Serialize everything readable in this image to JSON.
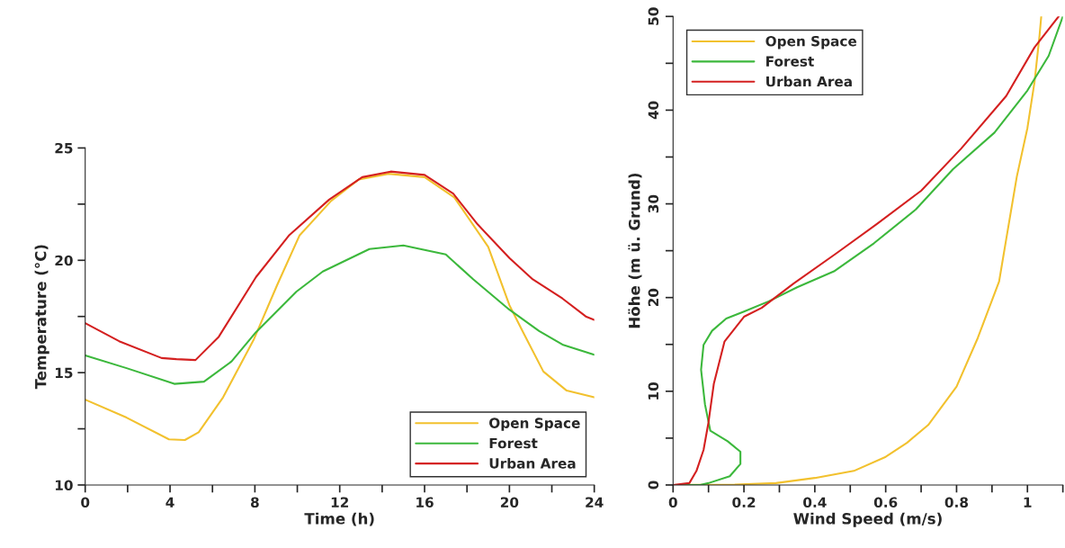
{
  "chart_data": [
    {
      "type": "line",
      "xlabel": "Time (h)",
      "ylabel": "Temperature (°C)",
      "xlim": [
        0,
        24
      ],
      "ylim": [
        10,
        25
      ],
      "xticks": [
        0,
        {
          "value": 2,
          "label": null
        },
        4,
        {
          "value": 6,
          "label": null
        },
        8,
        {
          "value": 10,
          "label": null
        },
        12,
        {
          "value": 14,
          "label": null
        },
        16,
        {
          "value": 18,
          "label": null
        },
        20,
        {
          "value": 22,
          "label": null
        },
        24
      ],
      "yticks": [
        10,
        {
          "value": 12.5,
          "label": null
        },
        15,
        {
          "value": 17.5,
          "label": null
        },
        20,
        {
          "value": 22.5,
          "label": null
        },
        25
      ],
      "legend": "bottom right",
      "grid": false,
      "series": [
        {
          "name": "Open Space",
          "color": "#f2c12e",
          "x": [
            0,
            1.95,
            3.95,
            4.7,
            5.35,
            6.5,
            7.96,
            9.05,
            10.1,
            11.6,
            12.9,
            14.3,
            16.0,
            17.4,
            19.0,
            20.0,
            20.7,
            21.6,
            22.7,
            24
          ],
          "values": [
            13.8,
            13.0,
            12.03,
            12.0,
            12.35,
            13.9,
            16.5,
            18.9,
            21.1,
            22.65,
            23.6,
            23.85,
            23.7,
            22.8,
            20.6,
            18.0,
            16.7,
            15.05,
            14.2,
            13.9
          ]
        },
        {
          "name": "Forest",
          "color": "#3cb83c",
          "x": [
            0,
            1.95,
            4.2,
            5.6,
            6.9,
            8.05,
            9.95,
            11.2,
            13.4,
            15.0,
            17.0,
            18.3,
            20.0,
            21.4,
            22.5,
            24
          ],
          "values": [
            15.77,
            15.2,
            14.5,
            14.6,
            15.5,
            16.8,
            18.6,
            19.5,
            20.5,
            20.66,
            20.26,
            19.15,
            17.8,
            16.85,
            16.25,
            15.8
          ]
        },
        {
          "name": "Urban Area",
          "color": "#d42020",
          "x": [
            0,
            1.6,
            3.6,
            4.3,
            5.2,
            6.3,
            8.05,
            9.6,
            11.5,
            13.06,
            14.4,
            16.0,
            17.35,
            18.5,
            20.0,
            21.1,
            22.5,
            23.6,
            24
          ],
          "values": [
            17.2,
            16.4,
            15.65,
            15.6,
            15.56,
            16.6,
            19.25,
            21.1,
            22.7,
            23.7,
            23.95,
            23.8,
            22.97,
            21.6,
            20.1,
            19.15,
            18.3,
            17.5,
            17.35
          ]
        }
      ]
    },
    {
      "type": "line",
      "xlabel": "Wind Speed (m/s)",
      "ylabel": "Höhe (m ü. Grund)",
      "xlim": [
        0,
        1.1
      ],
      "ylim": [
        0,
        50
      ],
      "xticks": [
        0,
        {
          "value": 0.1,
          "label": null
        },
        0.2,
        {
          "value": 0.3,
          "label": null
        },
        0.4,
        {
          "value": 0.5,
          "label": null
        },
        0.6,
        {
          "value": 0.7,
          "label": null
        },
        0.8,
        {
          "value": 0.9,
          "label": null
        },
        1,
        {
          "value": 1.1,
          "label": null
        }
      ],
      "yticks": [
        0,
        {
          "value": 5,
          "label": null
        },
        10,
        {
          "value": 15,
          "label": null
        },
        20,
        {
          "value": 25,
          "label": null
        },
        30,
        {
          "value": 35,
          "label": null
        },
        40,
        {
          "value": 45,
          "label": null
        },
        50
      ],
      "legend": "top left",
      "grid": false,
      "series": [
        {
          "name": "Open Space",
          "color": "#f2c12e",
          "x": [
            0,
            0.174,
            0.29,
            0.4,
            0.51,
            0.6,
            0.66,
            0.72,
            0.8,
            0.86,
            0.92,
            0.94,
            0.97,
            1.0,
            1.02,
            1.034,
            1.039
          ],
          "values": [
            0,
            0.04,
            0.2,
            0.75,
            1.5,
            3.0,
            4.5,
            6.4,
            10.5,
            15.7,
            21.7,
            26.2,
            32.9,
            38.1,
            43,
            47.9,
            50
          ]
        },
        {
          "name": "Forest",
          "color": "#3cb83c",
          "x": [
            0,
            0.076,
            0.1,
            0.16,
            0.19,
            0.19,
            0.154,
            0.105,
            0.09,
            0.079,
            0.086,
            0.11,
            0.15,
            0.2,
            0.27,
            0.35,
            0.454,
            0.567,
            0.685,
            0.79,
            0.907,
            1.0,
            1.06,
            1.1
          ],
          "values": [
            0,
            0,
            0.2,
            0.93,
            2.24,
            3.55,
            4.67,
            5.8,
            8.6,
            12.3,
            14.96,
            16.45,
            17.76,
            18.5,
            19.6,
            21.1,
            22.8,
            25.8,
            29.4,
            33.7,
            37.6,
            42.1,
            45.8,
            50
          ]
        },
        {
          "name": "Urban Area",
          "color": "#d42020",
          "x": [
            0,
            0.046,
            0.066,
            0.086,
            0.1,
            0.115,
            0.145,
            0.2,
            0.25,
            0.34,
            0.46,
            0.577,
            0.7,
            0.813,
            0.94,
            1.02,
            1.088
          ],
          "values": [
            0,
            0.2,
            1.5,
            3.74,
            6.7,
            10.8,
            15.3,
            17.95,
            18.9,
            21.5,
            24.7,
            27.9,
            31.4,
            35.9,
            41.5,
            46.7,
            50
          ]
        }
      ]
    }
  ]
}
